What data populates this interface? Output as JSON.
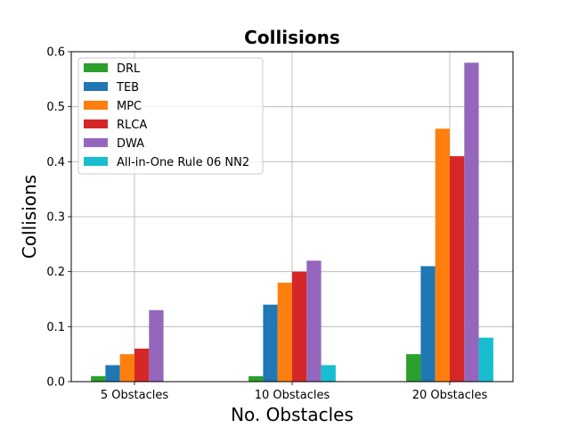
{
  "chart_data": {
    "type": "bar",
    "title": "Collisions",
    "xlabel": "No. Obstacles",
    "ylabel": "Collisions",
    "categories": [
      "5 Obstacles",
      "10 Obstacles",
      "20 Obstacles"
    ],
    "ylim": [
      0,
      0.6
    ],
    "yticks": [
      "0.0",
      "0.1",
      "0.2",
      "0.3",
      "0.4",
      "0.5",
      "0.6"
    ],
    "grid": true,
    "legend_position": "top-left",
    "series": [
      {
        "name": "DRL",
        "color": "#2ca02c",
        "values": [
          0.01,
          0.01,
          0.05
        ]
      },
      {
        "name": "TEB",
        "color": "#1f77b4",
        "values": [
          0.03,
          0.14,
          0.21
        ]
      },
      {
        "name": "MPC",
        "color": "#ff7f0e",
        "values": [
          0.05,
          0.18,
          0.46
        ]
      },
      {
        "name": "RLCA",
        "color": "#d62728",
        "values": [
          0.06,
          0.2,
          0.41
        ]
      },
      {
        "name": "DWA",
        "color": "#9467bd",
        "values": [
          0.13,
          0.22,
          0.58
        ]
      },
      {
        "name": "All-in-One Rule 06 NN2",
        "color": "#17becf",
        "values": [
          0,
          0.03,
          0.08
        ]
      }
    ]
  }
}
